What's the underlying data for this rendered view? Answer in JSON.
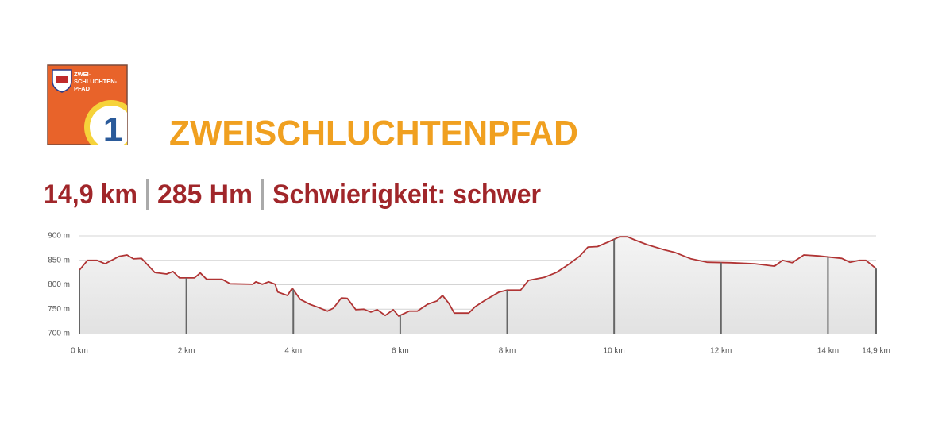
{
  "logo": {
    "lines": [
      "ZWEI-",
      "SCHLUCHTEN-",
      "PFAD"
    ],
    "number": "1"
  },
  "chart_data": {
    "type": "line",
    "title": "ZWEISCHLUCHTENPFAD",
    "stats": [
      "14,9 km",
      "285 Hm",
      "Schwierigkeit: schwer"
    ],
    "color": "#b03434",
    "x": [
      0,
      0.15,
      0.33,
      0.48,
      0.74,
      0.89,
      1.01,
      1.16,
      1.41,
      1.63,
      1.75,
      1.87,
      2.15,
      2.26,
      2.38,
      2.67,
      2.82,
      3.24,
      3.3,
      3.42,
      3.54,
      3.66,
      3.71,
      3.89,
      3.98,
      4.13,
      4.31,
      4.46,
      4.64,
      4.75,
      4.9,
      5.01,
      5.17,
      5.32,
      5.45,
      5.57,
      5.72,
      5.87,
      5.97,
      6.17,
      6.32,
      6.51,
      6.69,
      6.79,
      6.91,
      7.01,
      7.28,
      7.4,
      7.58,
      7.85,
      8.0,
      8.25,
      8.4,
      8.69,
      8.92,
      9.14,
      9.36,
      9.51,
      9.69,
      9.88,
      10.1,
      10.25,
      10.4,
      10.62,
      10.92,
      11.14,
      11.44,
      11.74,
      12.18,
      12.63,
      13.0,
      13.15,
      13.33,
      13.55,
      13.82,
      14.26,
      14.41,
      14.59,
      14.71,
      14.9
    ],
    "values": [
      830,
      850,
      850,
      843,
      858,
      861,
      853,
      854,
      825,
      822,
      827,
      814,
      814,
      824,
      811,
      811,
      802,
      801,
      806,
      801,
      806,
      801,
      785,
      778,
      793,
      770,
      760,
      754,
      746,
      752,
      773,
      772,
      749,
      750,
      744,
      749,
      737,
      749,
      736,
      746,
      746,
      760,
      767,
      778,
      762,
      742,
      742,
      755,
      768,
      785,
      789,
      789,
      809,
      815,
      825,
      841,
      859,
      877,
      878,
      887,
      898,
      898,
      891,
      882,
      872,
      866,
      853,
      846,
      845,
      843,
      838,
      850,
      845,
      861,
      859,
      854,
      846,
      850,
      850,
      833
    ],
    "xlim": [
      0,
      14.9
    ],
    "xticks": [
      {
        "value": 0,
        "label": "0 km"
      },
      {
        "value": 2,
        "label": "2 km"
      },
      {
        "value": 4,
        "label": "4 km"
      },
      {
        "value": 6,
        "label": "6 km"
      },
      {
        "value": 8,
        "label": "8 km"
      },
      {
        "value": 10,
        "label": "10 km"
      },
      {
        "value": 12,
        "label": "12 km"
      },
      {
        "value": 14,
        "label": "14 km"
      },
      {
        "value": 14.9,
        "label": "14,9 km"
      }
    ],
    "ylim": [
      700,
      900
    ],
    "yticks": [
      {
        "value": 700,
        "label": "700 m"
      },
      {
        "value": 750,
        "label": "750 m"
      },
      {
        "value": 800,
        "label": "800 m"
      },
      {
        "value": 850,
        "label": "850 m"
      },
      {
        "value": 900,
        "label": "900 m"
      }
    ],
    "grid": true
  }
}
